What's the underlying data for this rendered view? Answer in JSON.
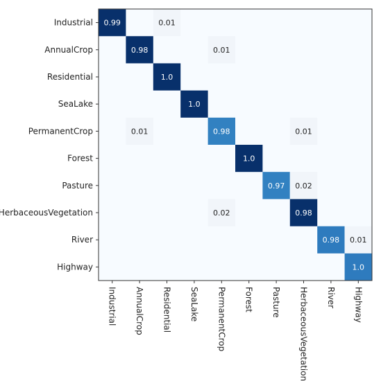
{
  "chart_data": {
    "type": "heatmap",
    "title": "",
    "xlabel": "",
    "ylabel": "",
    "row_labels": [
      "Industrial",
      "AnnualCrop",
      "Residential",
      "SeaLake",
      "PermanentCrop",
      "Forest",
      "Pasture",
      "HerbaceousVegetation",
      "River",
      "Highway"
    ],
    "col_labels": [
      "Industrial",
      "AnnualCrop",
      "Residential",
      "SeaLake",
      "PermanentCrop",
      "Forest",
      "Pasture",
      "HerbaceousVegetation",
      "River",
      "Highway"
    ],
    "cells": [
      {
        "row": 0,
        "col": 0,
        "value": 0.99,
        "label": "0.99"
      },
      {
        "row": 0,
        "col": 2,
        "value": 0.01,
        "label": "0.01"
      },
      {
        "row": 1,
        "col": 1,
        "value": 0.98,
        "label": "0.98"
      },
      {
        "row": 1,
        "col": 4,
        "value": 0.01,
        "label": "0.01"
      },
      {
        "row": 2,
        "col": 2,
        "value": 1.0,
        "label": "1.0"
      },
      {
        "row": 3,
        "col": 3,
        "value": 1.0,
        "label": "1.0"
      },
      {
        "row": 4,
        "col": 1,
        "value": 0.01,
        "label": "0.01"
      },
      {
        "row": 4,
        "col": 4,
        "value": 0.98,
        "label": "0.98"
      },
      {
        "row": 4,
        "col": 7,
        "value": 0.01,
        "label": "0.01"
      },
      {
        "row": 5,
        "col": 5,
        "value": 1.0,
        "label": "1.0"
      },
      {
        "row": 6,
        "col": 6,
        "value": 0.97,
        "label": "0.97"
      },
      {
        "row": 6,
        "col": 7,
        "value": 0.02,
        "label": "0.02"
      },
      {
        "row": 7,
        "col": 4,
        "value": 0.02,
        "label": "0.02"
      },
      {
        "row": 7,
        "col": 7,
        "value": 0.98,
        "label": "0.98"
      },
      {
        "row": 8,
        "col": 8,
        "value": 0.98,
        "label": "0.98"
      },
      {
        "row": 8,
        "col": 9,
        "value": 0.01,
        "label": "0.01"
      },
      {
        "row": 9,
        "col": 9,
        "value": 1.0,
        "label": "1.0"
      }
    ],
    "cell_colors": {
      "0,0": "#08306b",
      "1,1": "#08306b",
      "2,2": "#08306b",
      "3,3": "#08306b",
      "4,4": "#3281c1",
      "5,5": "#08306b",
      "6,6": "#3281c1",
      "7,7": "#08306b",
      "8,8": "#2e7bbe",
      "9,9": "#2e7bbe"
    },
    "colors": {
      "background": "#f7fbff",
      "low_value": "#f1f5fa",
      "frame": "#333333",
      "text_dark": "#222222",
      "text_light": "#ffffff"
    },
    "grid": false,
    "legend": "none"
  }
}
